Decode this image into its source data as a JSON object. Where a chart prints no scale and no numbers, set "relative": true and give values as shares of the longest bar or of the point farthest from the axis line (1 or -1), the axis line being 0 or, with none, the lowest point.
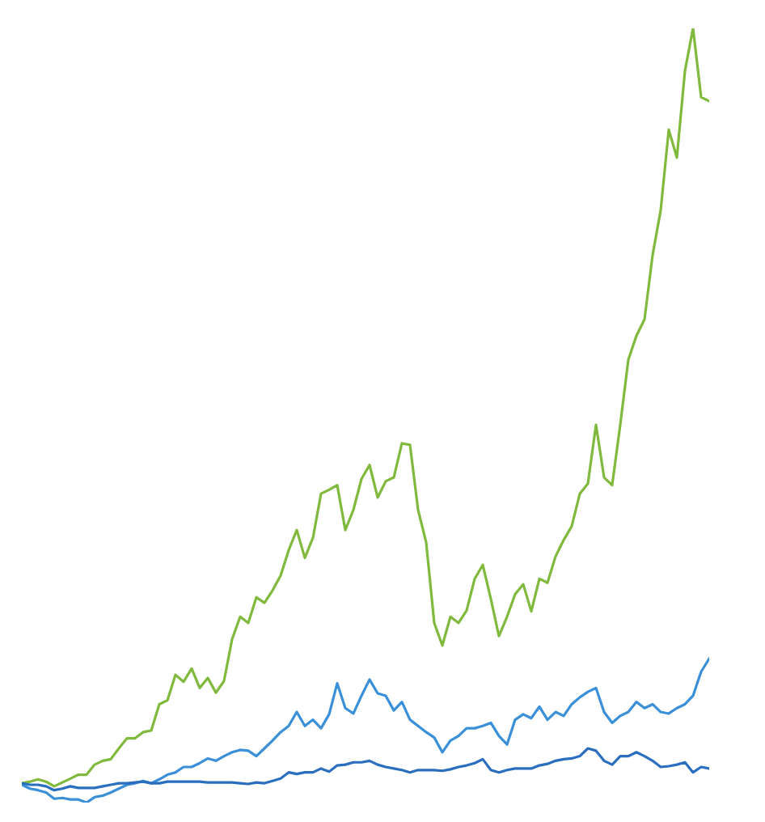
{
  "chart_data": {
    "type": "line",
    "relative": true,
    "categories": [
      null,
      null,
      null,
      null,
      null,
      null,
      null,
      null,
      null,
      null,
      null,
      null,
      null,
      null,
      null,
      null,
      null,
      null,
      null,
      null,
      null,
      null,
      null,
      null,
      null,
      null,
      null,
      null,
      null,
      null,
      null,
      null,
      null,
      null,
      null,
      null,
      null,
      null,
      null,
      null,
      null,
      null,
      null,
      null,
      null,
      null,
      null,
      null,
      null,
      null,
      null,
      null,
      null,
      null,
      null,
      null,
      null,
      null,
      null,
      null,
      null,
      null,
      null,
      null,
      null,
      null,
      null,
      null,
      null,
      null,
      null,
      null,
      null,
      null,
      null,
      null,
      null,
      null,
      null,
      null,
      null,
      null,
      null,
      null,
      null,
      null
    ],
    "series": [
      {
        "color": "#7fba3c",
        "values": [
          0.025,
          0.027,
          0.03,
          0.027,
          0.021,
          0.026,
          0.031,
          0.036,
          0.036,
          0.049,
          0.054,
          0.056,
          0.07,
          0.083,
          0.083,
          0.091,
          0.093,
          0.127,
          0.132,
          0.165,
          0.156,
          0.173,
          0.148,
          0.161,
          0.142,
          0.157,
          0.211,
          0.24,
          0.232,
          0.265,
          0.258,
          0.274,
          0.293,
          0.326,
          0.352,
          0.316,
          0.342,
          0.399,
          0.404,
          0.41,
          0.352,
          0.378,
          0.418,
          0.436,
          0.394,
          0.415,
          0.42,
          0.464,
          0.462,
          0.378,
          0.336,
          0.232,
          0.203,
          0.24,
          0.232,
          0.248,
          0.289,
          0.307,
          0.263,
          0.215,
          0.24,
          0.269,
          0.282,
          0.247,
          0.289,
          0.284,
          0.318,
          0.339,
          0.357,
          0.399,
          0.412,
          0.488,
          0.42,
          0.41,
          0.488,
          0.572,
          0.603,
          0.624,
          0.707,
          0.765,
          0.869,
          0.833,
          0.945,
          1,
          0.911,
          0.906
        ]
      },
      {
        "color": "#3a8fd9",
        "values": [
          0.023,
          0.018,
          0.016,
          0.013,
          0.005,
          0.006,
          0.004,
          0.004,
          0,
          0.007,
          0.009,
          0.013,
          0.018,
          0.023,
          0.025,
          0.028,
          0.025,
          0.03,
          0.036,
          0.039,
          0.046,
          0.046,
          0.051,
          0.057,
          0.054,
          0.06,
          0.065,
          0.068,
          0.067,
          0.06,
          0.07,
          0.08,
          0.091,
          0.099,
          0.117,
          0.099,
          0.107,
          0.096,
          0.114,
          0.154,
          0.122,
          0.115,
          0.138,
          0.159,
          0.141,
          0.138,
          0.119,
          0.13,
          0.107,
          0.099,
          0.091,
          0.084,
          0.065,
          0.08,
          0.086,
          0.096,
          0.096,
          0.099,
          0.103,
          0.086,
          0.075,
          0.107,
          0.114,
          0.109,
          0.124,
          0.107,
          0.117,
          0.112,
          0.127,
          0.136,
          0.143,
          0.148,
          0.117,
          0.103,
          0.112,
          0.117,
          0.13,
          0.122,
          0.127,
          0.117,
          0.115,
          0.122,
          0.127,
          0.138,
          0.169,
          0.186
        ]
      },
      {
        "color": "#2a6ebf",
        "values": [
          0.025,
          0.023,
          0.023,
          0.021,
          0.016,
          0.018,
          0.021,
          0.019,
          0.019,
          0.019,
          0.021,
          0.023,
          0.025,
          0.025,
          0.026,
          0.027,
          0.025,
          0.025,
          0.027,
          0.027,
          0.027,
          0.027,
          0.027,
          0.026,
          0.026,
          0.026,
          0.026,
          0.025,
          0.024,
          0.026,
          0.025,
          0.028,
          0.031,
          0.039,
          0.037,
          0.039,
          0.039,
          0.044,
          0.04,
          0.048,
          0.049,
          0.052,
          0.052,
          0.054,
          0.049,
          0.046,
          0.044,
          0.042,
          0.039,
          0.042,
          0.042,
          0.042,
          0.041,
          0.043,
          0.046,
          0.048,
          0.051,
          0.056,
          0.042,
          0.039,
          0.042,
          0.044,
          0.044,
          0.044,
          0.048,
          0.05,
          0.054,
          0.056,
          0.057,
          0.06,
          0.07,
          0.067,
          0.054,
          0.049,
          0.06,
          0.06,
          0.065,
          0.06,
          0.054,
          0.046,
          0.047,
          0.049,
          0.052,
          0.039,
          0.046,
          0.044
        ]
      }
    ]
  }
}
